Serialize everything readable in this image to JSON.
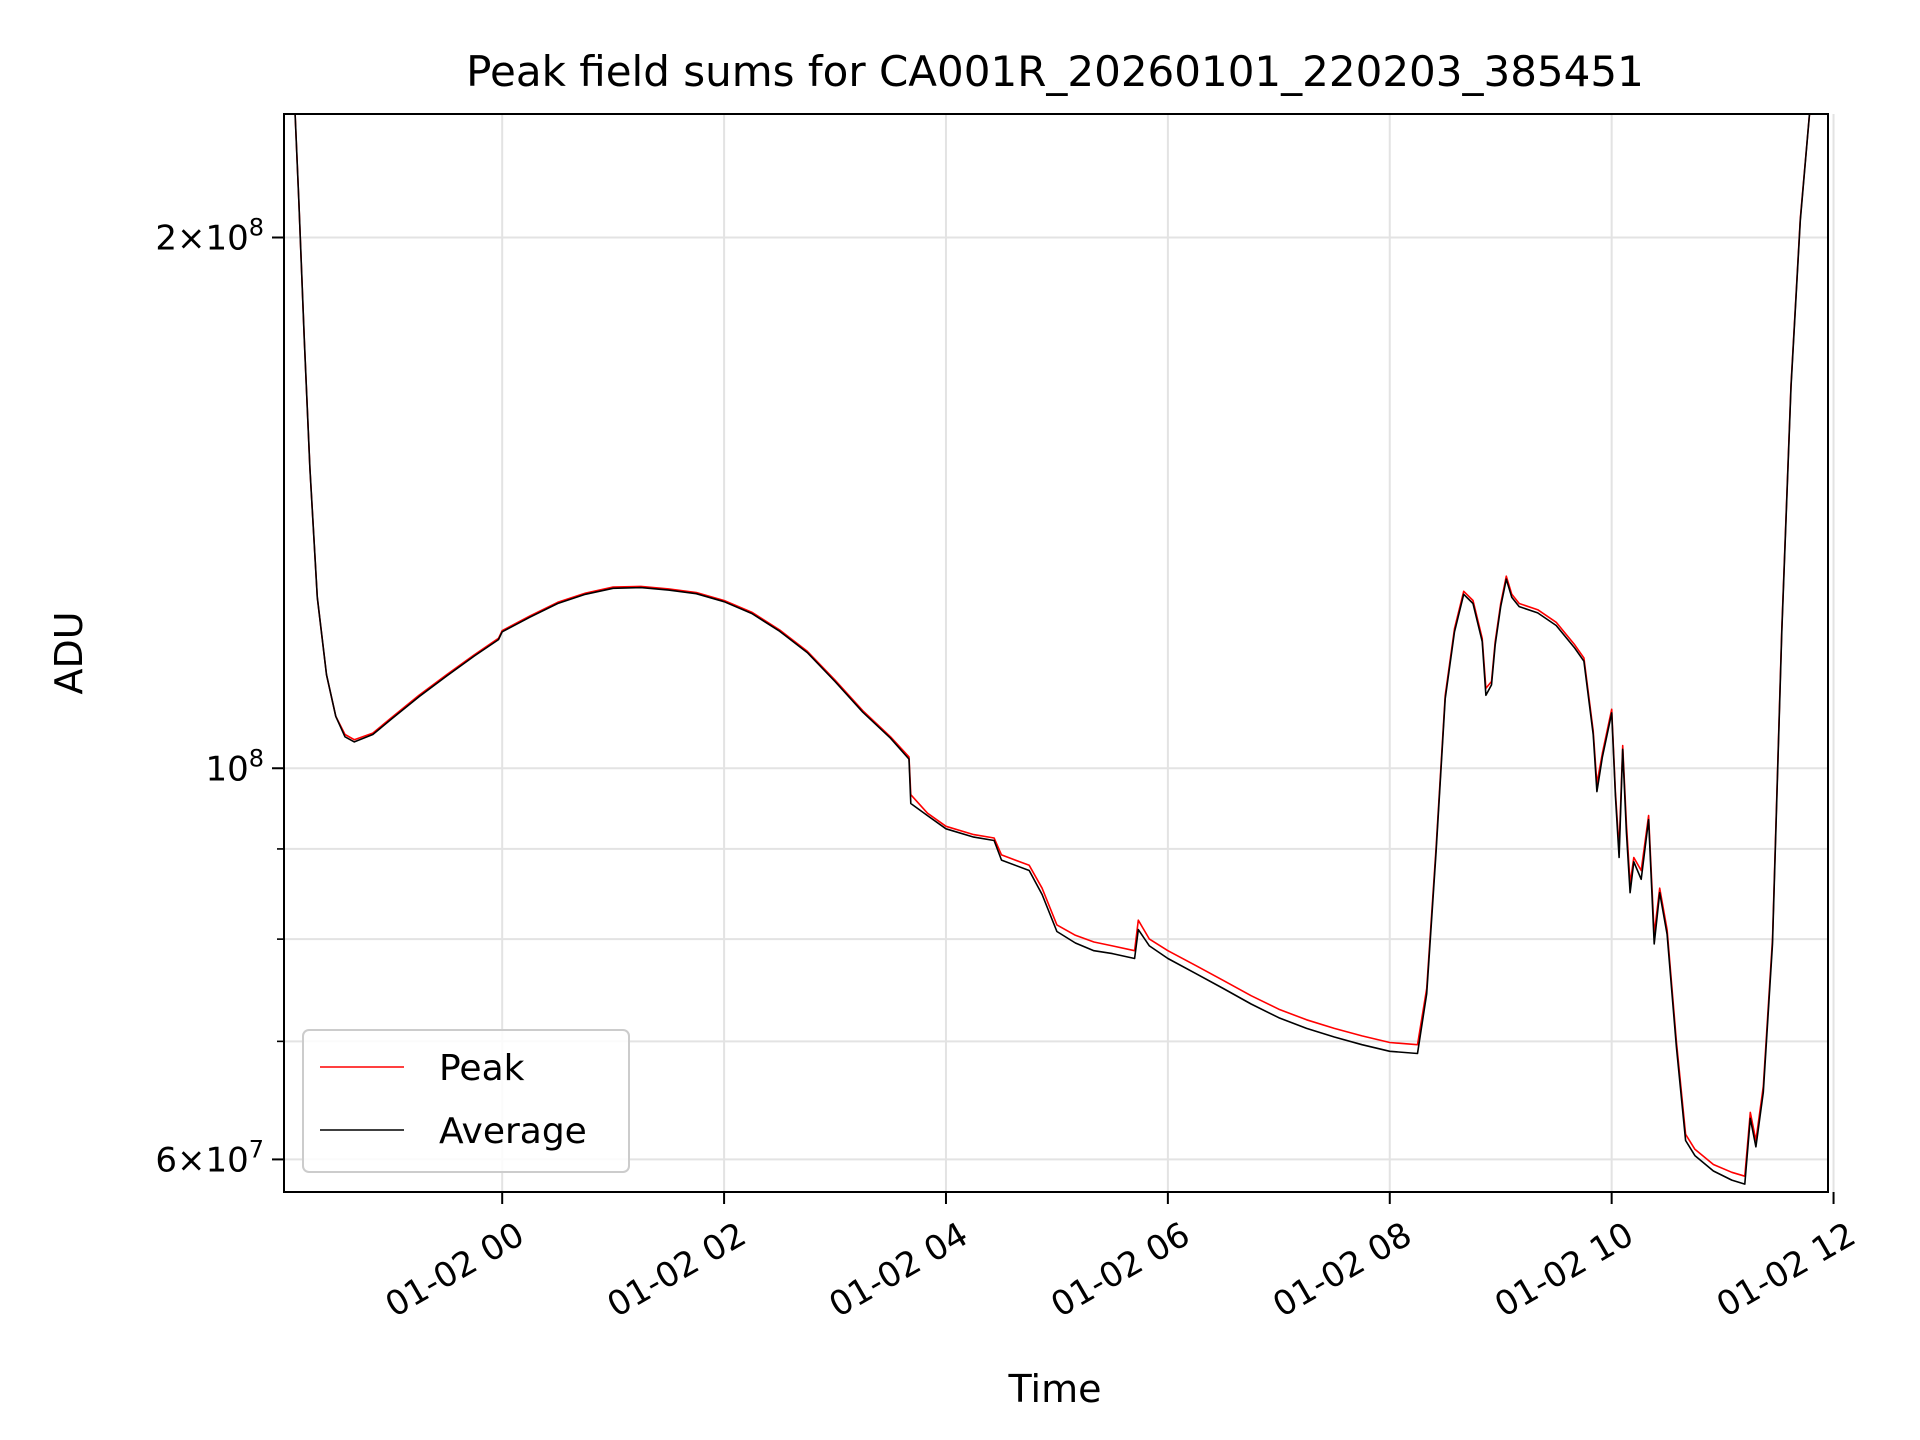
{
  "chart_data": {
    "type": "line",
    "title": "Peak field sums for CA001R_20260101_220203_385451",
    "xlabel": "Time",
    "ylabel": "ADU",
    "yscale": "log",
    "grid": true,
    "legend_position": "lower-left",
    "x_ticks": [
      "01-02 00",
      "01-02 02",
      "01-02 04",
      "01-02 06",
      "01-02 08",
      "01-02 10",
      "01-02 12"
    ],
    "y_ticks": [
      {
        "value": 200000000,
        "mantissa": "2",
        "exponent": "8"
      },
      {
        "value": 100000000,
        "mantissa": "",
        "exponent": "8"
      },
      {
        "value": 60000000,
        "mantissa": "6",
        "exponent": "7"
      }
    ],
    "y_minor_ticks": [
      70000000,
      80000000,
      90000000
    ],
    "xlim": [
      "2026-01-01 22:02",
      "2026-01-02 11:57"
    ],
    "ylim": [
      57500000,
      235000000
    ],
    "series": [
      {
        "name": "Peak",
        "color": "#ff0000",
        "points": [
          [
            "2026-01-01 22:08",
            235000000
          ],
          [
            "2026-01-01 22:10",
            210000000
          ],
          [
            "2026-01-01 22:13",
            175000000
          ],
          [
            "2026-01-01 22:16",
            148000000
          ],
          [
            "2026-01-01 22:20",
            125000000
          ],
          [
            "2026-01-01 22:25",
            113000000
          ],
          [
            "2026-01-01 22:30",
            107000000
          ],
          [
            "2026-01-01 22:35",
            104500000
          ],
          [
            "2026-01-01 22:40",
            103800000
          ],
          [
            "2026-01-01 22:50",
            104700000
          ],
          [
            "2026-01-01 23:00",
            106800000
          ],
          [
            "2026-01-01 23:15",
            110000000
          ],
          [
            "2026-01-01 23:30",
            113000000
          ],
          [
            "2026-01-01 23:45",
            116000000
          ],
          [
            "2026-01-01 23:58",
            118500000
          ],
          [
            "2026-01-02 00:00",
            119700000
          ],
          [
            "2026-01-02 00:15",
            122000000
          ],
          [
            "2026-01-02 00:30",
            124200000
          ],
          [
            "2026-01-02 00:45",
            125700000
          ],
          [
            "2026-01-02 01:00",
            126700000
          ],
          [
            "2026-01-02 01:15",
            126800000
          ],
          [
            "2026-01-02 01:30",
            126400000
          ],
          [
            "2026-01-02 01:45",
            125800000
          ],
          [
            "2026-01-02 02:00",
            124500000
          ],
          [
            "2026-01-02 02:15",
            122600000
          ],
          [
            "2026-01-02 02:30",
            119800000
          ],
          [
            "2026-01-02 02:45",
            116500000
          ],
          [
            "2026-01-02 03:00",
            112200000
          ],
          [
            "2026-01-02 03:15",
            107800000
          ],
          [
            "2026-01-02 03:30",
            104200000
          ],
          [
            "2026-01-02 03:40",
            101500000
          ],
          [
            "2026-01-02 03:41",
            96600000
          ],
          [
            "2026-01-02 03:50",
            94300000
          ],
          [
            "2026-01-02 04:00",
            92700000
          ],
          [
            "2026-01-02 04:15",
            91700000
          ],
          [
            "2026-01-02 04:26",
            91300000
          ],
          [
            "2026-01-02 04:30",
            89300000
          ],
          [
            "2026-01-02 04:45",
            88100000
          ],
          [
            "2026-01-02 04:52",
            85500000
          ],
          [
            "2026-01-02 05:00",
            81500000
          ],
          [
            "2026-01-02 05:10",
            80400000
          ],
          [
            "2026-01-02 05:20",
            79700000
          ],
          [
            "2026-01-02 05:30",
            79300000
          ],
          [
            "2026-01-02 05:42",
            78800000
          ],
          [
            "2026-01-02 05:44",
            82000000
          ],
          [
            "2026-01-02 05:50",
            80000000
          ],
          [
            "2026-01-02 06:00",
            78800000
          ],
          [
            "2026-01-02 06:15",
            77300000
          ],
          [
            "2026-01-02 06:30",
            75800000
          ],
          [
            "2026-01-02 06:45",
            74300000
          ],
          [
            "2026-01-02 07:00",
            73000000
          ],
          [
            "2026-01-02 07:15",
            72000000
          ],
          [
            "2026-01-02 07:30",
            71200000
          ],
          [
            "2026-01-02 07:45",
            70500000
          ],
          [
            "2026-01-02 08:00",
            69900000
          ],
          [
            "2026-01-02 08:15",
            69700000
          ],
          [
            "2026-01-02 08:20",
            75000000
          ],
          [
            "2026-01-02 08:25",
            90000000
          ],
          [
            "2026-01-02 08:30",
            110000000
          ],
          [
            "2026-01-02 08:35",
            120000000
          ],
          [
            "2026-01-02 08:40",
            126000000
          ],
          [
            "2026-01-02 08:45",
            124500000
          ],
          [
            "2026-01-02 08:50",
            118500000
          ],
          [
            "2026-01-02 08:52",
            111000000
          ],
          [
            "2026-01-02 08:55",
            112000000
          ],
          [
            "2026-01-02 08:57",
            118000000
          ],
          [
            "2026-01-02 09:00",
            124000000
          ],
          [
            "2026-01-02 09:03",
            128500000
          ],
          [
            "2026-01-02 09:06",
            125500000
          ],
          [
            "2026-01-02 09:10",
            124000000
          ],
          [
            "2026-01-02 09:20",
            123000000
          ],
          [
            "2026-01-02 09:30",
            121000000
          ],
          [
            "2026-01-02 09:40",
            117500000
          ],
          [
            "2026-01-02 09:45",
            115500000
          ],
          [
            "2026-01-02 09:50",
            105000000
          ],
          [
            "2026-01-02 09:52",
            98000000
          ],
          [
            "2026-01-02 09:55",
            102000000
          ],
          [
            "2026-01-02 10:00",
            108000000
          ],
          [
            "2026-01-02 10:02",
            97000000
          ],
          [
            "2026-01-02 10:04",
            90000000
          ],
          [
            "2026-01-02 10:06",
            103000000
          ],
          [
            "2026-01-02 10:08",
            93000000
          ],
          [
            "2026-01-02 10:10",
            86000000
          ],
          [
            "2026-01-02 10:12",
            89000000
          ],
          [
            "2026-01-02 10:16",
            87500000
          ],
          [
            "2026-01-02 10:20",
            94000000
          ],
          [
            "2026-01-02 10:23",
            80500000
          ],
          [
            "2026-01-02 10:26",
            85500000
          ],
          [
            "2026-01-02 10:30",
            81000000
          ],
          [
            "2026-01-02 10:35",
            70000000
          ],
          [
            "2026-01-02 10:40",
            62000000
          ],
          [
            "2026-01-02 10:45",
            60800000
          ],
          [
            "2026-01-02 10:55",
            59600000
          ],
          [
            "2026-01-02 11:05",
            59000000
          ],
          [
            "2026-01-02 11:12",
            58700000
          ],
          [
            "2026-01-02 11:15",
            63800000
          ],
          [
            "2026-01-02 11:18",
            61500000
          ],
          [
            "2026-01-02 11:22",
            66000000
          ],
          [
            "2026-01-02 11:27",
            80000000
          ],
          [
            "2026-01-02 11:32",
            120000000
          ],
          [
            "2026-01-02 11:37",
            165000000
          ],
          [
            "2026-01-02 11:42",
            205000000
          ],
          [
            "2026-01-02 11:47",
            235000000
          ]
        ]
      },
      {
        "name": "Average",
        "color": "#000000",
        "points": [
          [
            "2026-01-01 22:08",
            235000000
          ],
          [
            "2026-01-01 22:10",
            210000000
          ],
          [
            "2026-01-01 22:13",
            175000000
          ],
          [
            "2026-01-01 22:16",
            148000000
          ],
          [
            "2026-01-01 22:20",
            125000000
          ],
          [
            "2026-01-01 22:25",
            113000000
          ],
          [
            "2026-01-01 22:30",
            107000000
          ],
          [
            "2026-01-01 22:35",
            104200000
          ],
          [
            "2026-01-01 22:40",
            103500000
          ],
          [
            "2026-01-01 22:50",
            104500000
          ],
          [
            "2026-01-01 23:00",
            106600000
          ],
          [
            "2026-01-01 23:15",
            109800000
          ],
          [
            "2026-01-01 23:30",
            112800000
          ],
          [
            "2026-01-01 23:45",
            115800000
          ],
          [
            "2026-01-01 23:58",
            118300000
          ],
          [
            "2026-01-02 00:00",
            119500000
          ],
          [
            "2026-01-02 00:15",
            121800000
          ],
          [
            "2026-01-02 00:30",
            124000000
          ],
          [
            "2026-01-02 00:45",
            125500000
          ],
          [
            "2026-01-02 01:00",
            126500000
          ],
          [
            "2026-01-02 01:15",
            126600000
          ],
          [
            "2026-01-02 01:30",
            126200000
          ],
          [
            "2026-01-02 01:45",
            125600000
          ],
          [
            "2026-01-02 02:00",
            124300000
          ],
          [
            "2026-01-02 02:15",
            122400000
          ],
          [
            "2026-01-02 02:30",
            119600000
          ],
          [
            "2026-01-02 02:45",
            116300000
          ],
          [
            "2026-01-02 03:00",
            112000000
          ],
          [
            "2026-01-02 03:15",
            107600000
          ],
          [
            "2026-01-02 03:30",
            104000000
          ],
          [
            "2026-01-02 03:40",
            101200000
          ],
          [
            "2026-01-02 03:41",
            95500000
          ],
          [
            "2026-01-02 03:50",
            94000000
          ],
          [
            "2026-01-02 04:00",
            92400000
          ],
          [
            "2026-01-02 04:15",
            91400000
          ],
          [
            "2026-01-02 04:26",
            91000000
          ],
          [
            "2026-01-02 04:30",
            88700000
          ],
          [
            "2026-01-02 04:45",
            87500000
          ],
          [
            "2026-01-02 04:52",
            84800000
          ],
          [
            "2026-01-02 05:00",
            80800000
          ],
          [
            "2026-01-02 05:10",
            79600000
          ],
          [
            "2026-01-02 05:20",
            78800000
          ],
          [
            "2026-01-02 05:30",
            78500000
          ],
          [
            "2026-01-02 05:42",
            78000000
          ],
          [
            "2026-01-02 05:44",
            81000000
          ],
          [
            "2026-01-02 05:50",
            79300000
          ],
          [
            "2026-01-02 06:00",
            78000000
          ],
          [
            "2026-01-02 06:15",
            76500000
          ],
          [
            "2026-01-02 06:30",
            75000000
          ],
          [
            "2026-01-02 06:45",
            73500000
          ],
          [
            "2026-01-02 07:00",
            72200000
          ],
          [
            "2026-01-02 07:15",
            71200000
          ],
          [
            "2026-01-02 07:30",
            70400000
          ],
          [
            "2026-01-02 07:45",
            69700000
          ],
          [
            "2026-01-02 08:00",
            69100000
          ],
          [
            "2026-01-02 08:15",
            68900000
          ],
          [
            "2026-01-02 08:20",
            74500000
          ],
          [
            "2026-01-02 08:25",
            89500000
          ],
          [
            "2026-01-02 08:30",
            109500000
          ],
          [
            "2026-01-02 08:35",
            119500000
          ],
          [
            "2026-01-02 08:40",
            125500000
          ],
          [
            "2026-01-02 08:45",
            124000000
          ],
          [
            "2026-01-02 08:50",
            118000000
          ],
          [
            "2026-01-02 08:52",
            110000000
          ],
          [
            "2026-01-02 08:55",
            111500000
          ],
          [
            "2026-01-02 08:57",
            117500000
          ],
          [
            "2026-01-02 09:00",
            123500000
          ],
          [
            "2026-01-02 09:03",
            128000000
          ],
          [
            "2026-01-02 09:06",
            125000000
          ],
          [
            "2026-01-02 09:10",
            123500000
          ],
          [
            "2026-01-02 09:20",
            122500000
          ],
          [
            "2026-01-02 09:30",
            120500000
          ],
          [
            "2026-01-02 09:40",
            117000000
          ],
          [
            "2026-01-02 09:45",
            115000000
          ],
          [
            "2026-01-02 09:50",
            104500000
          ],
          [
            "2026-01-02 09:52",
            97000000
          ],
          [
            "2026-01-02 09:55",
            101500000
          ],
          [
            "2026-01-02 10:00",
            107500000
          ],
          [
            "2026-01-02 10:02",
            96500000
          ],
          [
            "2026-01-02 10:04",
            89000000
          ],
          [
            "2026-01-02 10:06",
            102500000
          ],
          [
            "2026-01-02 10:08",
            92000000
          ],
          [
            "2026-01-02 10:10",
            85000000
          ],
          [
            "2026-01-02 10:12",
            88500000
          ],
          [
            "2026-01-02 10:16",
            86500000
          ],
          [
            "2026-01-02 10:20",
            93500000
          ],
          [
            "2026-01-02 10:23",
            79500000
          ],
          [
            "2026-01-02 10:26",
            85000000
          ],
          [
            "2026-01-02 10:30",
            80500000
          ],
          [
            "2026-01-02 10:35",
            69500000
          ],
          [
            "2026-01-02 10:40",
            61500000
          ],
          [
            "2026-01-02 10:45",
            60300000
          ],
          [
            "2026-01-02 10:55",
            59100000
          ],
          [
            "2026-01-02 11:05",
            58400000
          ],
          [
            "2026-01-02 11:12",
            58100000
          ],
          [
            "2026-01-02 11:15",
            63300000
          ],
          [
            "2026-01-02 11:18",
            61000000
          ],
          [
            "2026-01-02 11:22",
            65500000
          ],
          [
            "2026-01-02 11:27",
            79500000
          ],
          [
            "2026-01-02 11:32",
            119500000
          ],
          [
            "2026-01-02 11:37",
            164500000
          ],
          [
            "2026-01-02 11:42",
            204500000
          ],
          [
            "2026-01-02 11:47",
            235000000
          ]
        ]
      }
    ]
  }
}
